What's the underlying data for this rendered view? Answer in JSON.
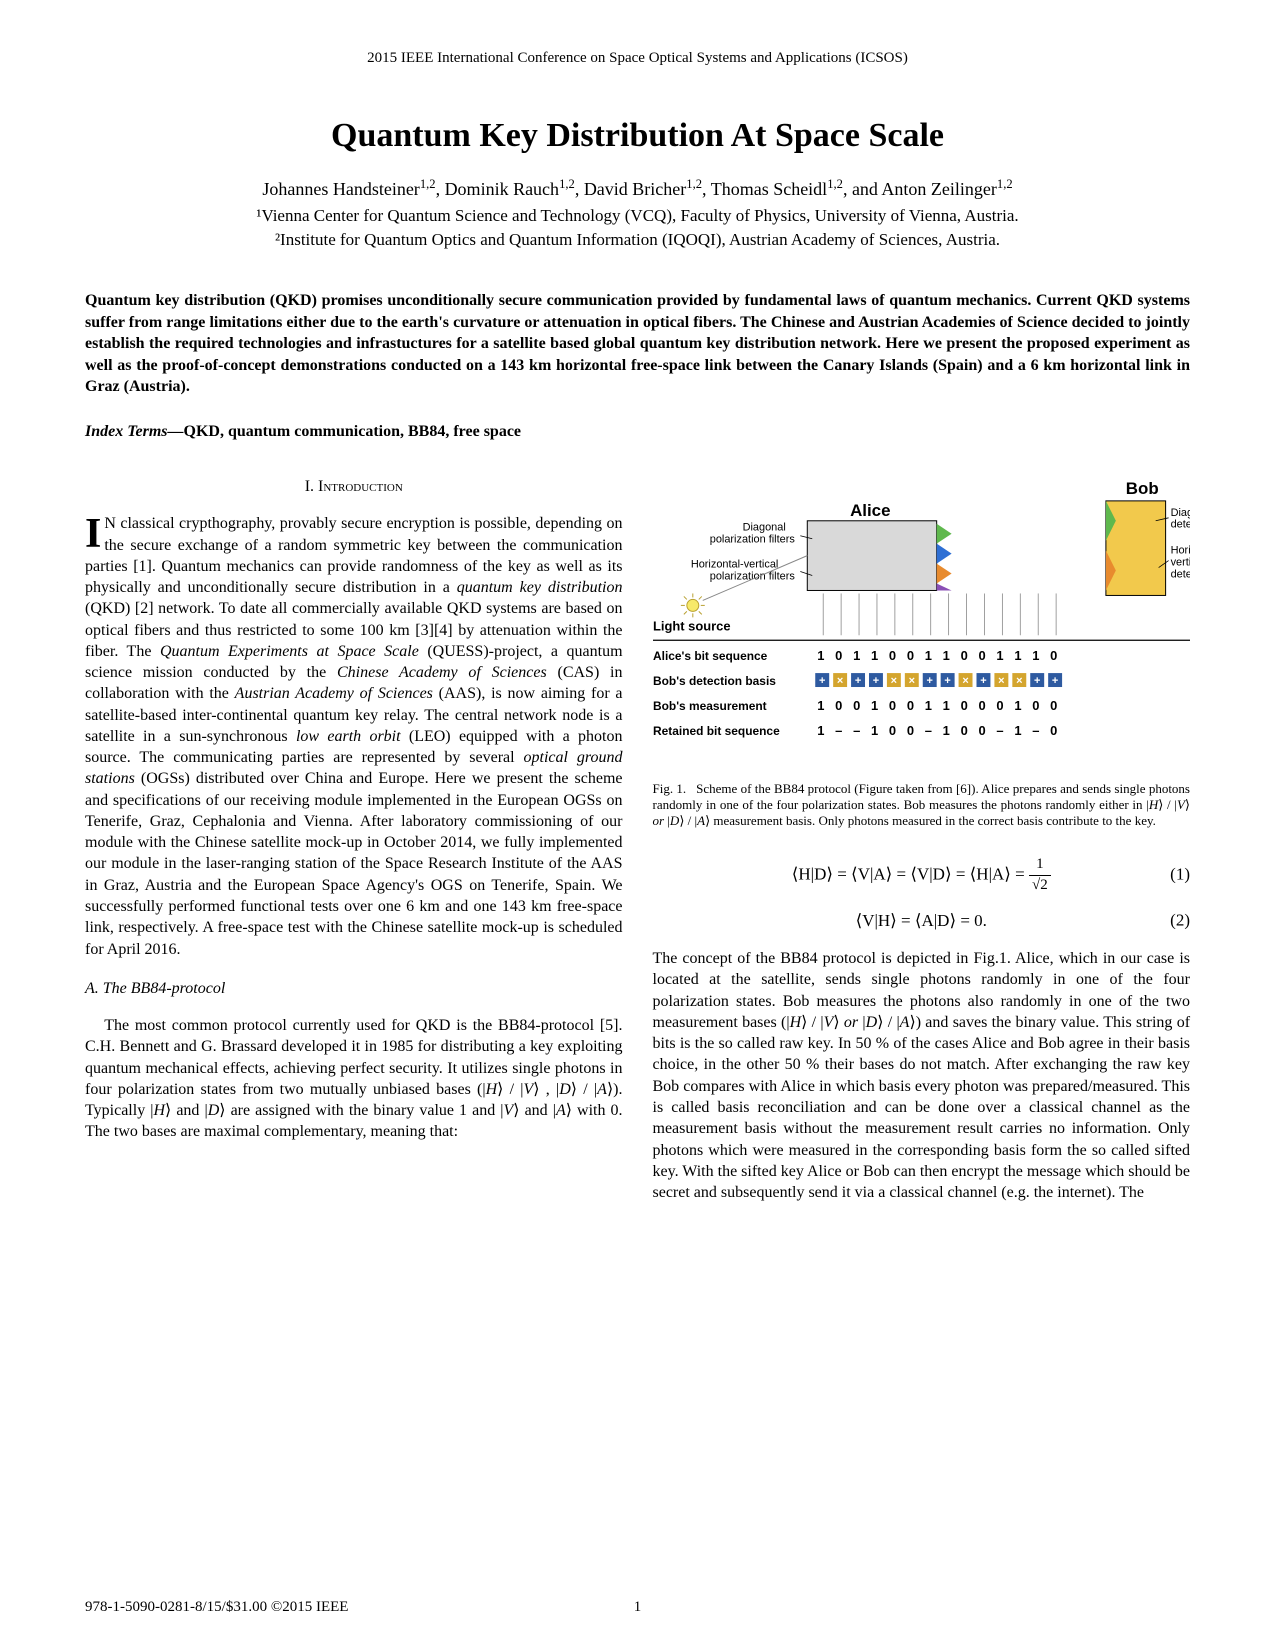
{
  "conference_header": "2015 IEEE International Conference on Space Optical Systems and Applications (ICSOS)",
  "title": "Quantum Key Distribution At Space Scale",
  "authors_line": "Johannes Handsteiner¹·², Dominik Rauch¹·², David Bricher¹·², Thomas Scheidl¹·², and Anton Zeilinger¹·²",
  "affil1": "¹Vienna Center for Quantum Science and Technology (VCQ), Faculty of Physics, University of Vienna, Austria.",
  "affil2": "²Institute for Quantum Optics and Quantum Information (IQOQI), Austrian Academy of Sciences, Austria.",
  "abstract": "Quantum key distribution (QKD) promises unconditionally secure communication provided by fundamental laws of quantum mechanics. Current QKD systems suffer from range limitations either due to the earth's curvature or attenuation in optical fibers. The Chinese and Austrian Academies of Science decided to jointly establish the required technologies and infrastuctures for a satellite based global quantum key distribution network. Here we present the proposed experiment as well as the proof-of-concept demonstrations conducted on a 143 km horizontal free-space link between the Canary Islands (Spain) and a 6 km horizontal link in Graz (Austria).",
  "index_terms_label": "Index Terms—",
  "index_terms": "QKD, quantum communication, BB84, free space",
  "sec1_heading": "I. Introduction",
  "intro_dropcap": "I",
  "intro_body": "N classical crypthography, provably secure encryption is possible, depending on the secure exchange of a random symmetric key between the communication parties [1]. Quantum mechanics can provide randomness of the key as well as its physically and unconditionally secure distribution in a quantum key distribution (QKD) [2] network. To date all commercially available QKD systems are based on optical fibers and thus restricted to some 100 km [3][4] by attenuation within the fiber. The Quantum Experiments at Space Scale (QUESS)-project, a quantum science mission conducted by the Chinese Academy of Sciences (CAS) in collaboration with the Austrian Academy of Sciences (AAS), is now aiming for a satellite-based inter-continental quantum key relay. The central network node is a satellite in a sun-synchronous low earth orbit (LEO) equipped with a photon source. The communicating parties are represented by several optical ground stations (OGSs) distributed over China and Europe. Here we present the scheme and specifications of our receiving module implemented in the European OGSs on Tenerife, Graz, Cephalonia and Vienna. After laboratory commissioning of our module with the Chinese satellite mock-up in October 2014, we fully implemented our module in the laser-ranging station of the Space Research Institute of the AAS in Graz, Austria and the European Space Agency's OGS on Tenerife, Spain. We successfully performed functional tests over one 6 km and one 143 km free-space link, respectively. A free-space test with the Chinese satellite mock-up is scheduled for April 2016.",
  "subsecA_heading": "A. The BB84-protocol",
  "subsecA_body": "The most common protocol currently used for QKD is the BB84-protocol [5]. C.H. Bennett and G. Brassard developed it in 1985 for distributing a key exploiting quantum mechanical effects, achieving perfect security. It utilizes single photons in four polarization states from two mutually unbiased bases (|H⟩ / |V⟩ , |D⟩ / |A⟩). Typically |H⟩ and |D⟩ are assigned with the binary value 1 and |V⟩ and |A⟩ with 0. The two bases are maximal complementary, meaning that:",
  "fig1_caption": "Fig. 1.   Scheme of the BB84 protocol (Figure taken from [6]). Alice prepares and sends single photons randomly in one of the four polarization states. Bob measures the photons randomly either in |H⟩ / |V⟩ or |D⟩ / |A⟩ measurement basis. Only photons measured in the correct basis contribute to the key.",
  "eq1": "⟨H|D⟩ = ⟨V|A⟩ = ⟨V|D⟩ = ⟨H|A⟩ =",
  "eq1_frac_num": "1",
  "eq1_frac_den": "√2",
  "eq1_num": "(1)",
  "eq2": "⟨V|H⟩ = ⟨A|D⟩ = 0.",
  "eq2_num": "(2)",
  "col2_body": "The concept of the BB84 protocol is depicted in Fig.1. Alice, which in our case is located at the satellite, sends single photons randomly in one of the four polarization states. Bob measures the photons also randomly in one of the two measurement bases (|H⟩ / |V⟩ or |D⟩ / |A⟩) and saves the binary value. This string of bits is the so called raw key. In 50 % of the cases Alice and Bob agree in their basis choice, in the other 50 % their bases do not match. After exchanging the raw key Bob compares with Alice in which basis every photon was prepared/measured. This is called basis reconciliation and can be done over a classical channel as the measurement basis without the measurement result carries no information. Only photons which were measured in the corresponding basis form the so called sifted key. With the sifted key Alice or Bob can then encrypt the message which should be secret and subsequently send it via a classical channel (e.g. the internet). The",
  "footer_copyright": "978-1-5090-0281-8/15/$31.00 ©2015 IEEE",
  "footer_page": "1",
  "fig1": {
    "alice_label": "Alice",
    "bob_label": "Bob",
    "diag_filters": "Diagonal\npolarization filters",
    "hv_filters": "Horizontal-vertical\npolarization filters",
    "diag_detector": "Diagonal\ndetector basis",
    "hv_detector": "Horizontal-\nvertical\ndetector basis",
    "light_source": "Light source",
    "row_labels": [
      "Alice's bit sequence",
      "Bob's detection basis",
      "Bob's measurement",
      "Retained bit sequence"
    ],
    "alice_bits": [
      "1",
      "0",
      "1",
      "1",
      "0",
      "0",
      "1",
      "1",
      "0",
      "0",
      "1",
      "1",
      "1",
      "0"
    ],
    "bob_basis": [
      "+",
      "×",
      "+",
      "+",
      "×",
      "×",
      "+",
      "+",
      "×",
      "+",
      "×",
      "×",
      "+",
      "+"
    ],
    "bob_meas": [
      "1",
      "0",
      "0",
      "1",
      "0",
      "0",
      "1",
      "1",
      "0",
      "0",
      "0",
      "1",
      "0",
      "0"
    ],
    "retained": [
      "1",
      "–",
      "–",
      "1",
      "0",
      "0",
      "–",
      "1",
      "0",
      "0",
      "–",
      "1",
      "–",
      "0"
    ],
    "colors": {
      "alice_box": "#d9d9d9",
      "bob_box": "#f2c94c",
      "diag_green": "#5fb84d",
      "diag_blue": "#2e6fd4",
      "hv_orange": "#e88b2e",
      "hv_purple": "#8a4fb5",
      "hv_basis_fill": "#2e5aa0",
      "diag_basis_fill": "#d4a52e",
      "light": "#f7e96a"
    }
  }
}
